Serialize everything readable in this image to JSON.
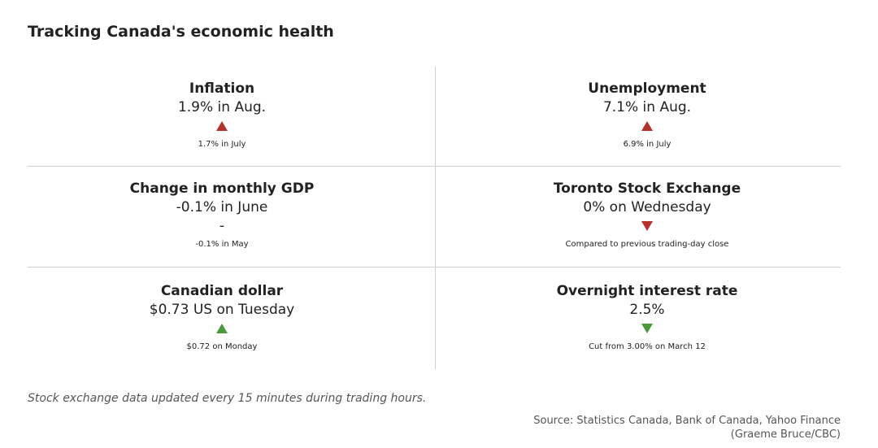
{
  "title": "Tracking Canada's economic health",
  "indicators": [
    {
      "name": "Inflation",
      "value": "1.9% in Aug.",
      "trend": "up",
      "trend_color": "#b5312a",
      "sub": "1.7% in July"
    },
    {
      "name": "Unemployment",
      "value": "7.1% in Aug.",
      "trend": "up",
      "trend_color": "#b5312a",
      "sub": "6.9% in July"
    },
    {
      "name": "Change in monthly GDP",
      "value": "-0.1% in June",
      "trend": "-",
      "trend_color": "#222222",
      "sub": "-0.1% in May"
    },
    {
      "name": "Toronto Stock Exchange",
      "value": "0% on Wednesday",
      "trend": "down",
      "trend_color": "#b5312a",
      "sub": "Compared to previous trading-day close"
    },
    {
      "name": "Canadian dollar",
      "value": "$0.73 US on Tuesday",
      "trend": "up",
      "trend_color": "#4a9a3a",
      "sub": "$0.72 on Monday"
    },
    {
      "name": "Overnight interest rate",
      "value": "2.5%",
      "trend": "down",
      "trend_color": "#4a9a3a",
      "sub": "Cut from 3.00% on March 12"
    }
  ],
  "note": "Stock exchange data updated every 15 minutes during trading hours.",
  "source_line1": "Source: Statistics Canada, Bank of Canada, Yahoo Finance",
  "source_line2": "(Graeme Bruce/CBC)"
}
